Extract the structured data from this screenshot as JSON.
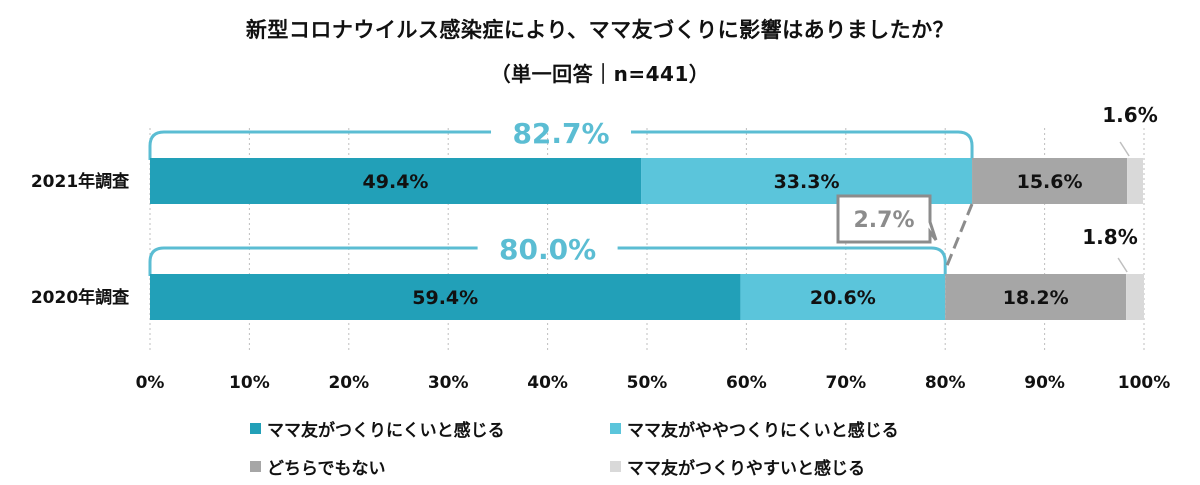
{
  "title": "新型コロナウイルス感染症により、ママ友づくりに影響はありましたか？",
  "subtitle": "（単一回答｜n=441）",
  "colors": {
    "series1": "#22a0b8",
    "series2": "#5bc5db",
    "series3": "#a6a6a6",
    "series4": "#d9d9d9",
    "bracket": "#5bbdd3",
    "callout": "#8c8c8c",
    "axis": "#bfbfbf"
  },
  "chart_data": {
    "type": "bar",
    "orientation": "horizontal",
    "stacked": true,
    "categories": [
      "2021年調査",
      "2020年調査"
    ],
    "series": [
      {
        "name": "ママ友がつくりにくいと感じる",
        "values": [
          49.4,
          59.4
        ],
        "labels": [
          "49.4%",
          "59.4%"
        ]
      },
      {
        "name": "ママ友がややつくりにくいと感じる",
        "values": [
          33.3,
          20.6
        ],
        "labels": [
          "33.3%",
          "20.6%"
        ]
      },
      {
        "name": "どちらでもない",
        "values": [
          15.6,
          18.2
        ],
        "labels": [
          "15.6%",
          "18.2%"
        ]
      },
      {
        "name": "ママ友がつくりやすいと感じる",
        "values": [
          1.6,
          1.8
        ],
        "labels": [
          "1.6%",
          "1.8%"
        ]
      }
    ],
    "xlim": [
      0,
      100
    ],
    "xticks": [
      "0%",
      "10%",
      "20%",
      "30%",
      "40%",
      "50%",
      "60%",
      "70%",
      "80%",
      "90%",
      "100%"
    ],
    "annotations": {
      "brackets": [
        {
          "category": "2021年調査",
          "value": 82.7,
          "label": "82.7%"
        },
        {
          "category": "2020年調査",
          "value": 80.0,
          "label": "80.0%"
        }
      ],
      "callout": {
        "label": "2.7%",
        "value": 2.7
      }
    },
    "legend_position": "bottom"
  }
}
